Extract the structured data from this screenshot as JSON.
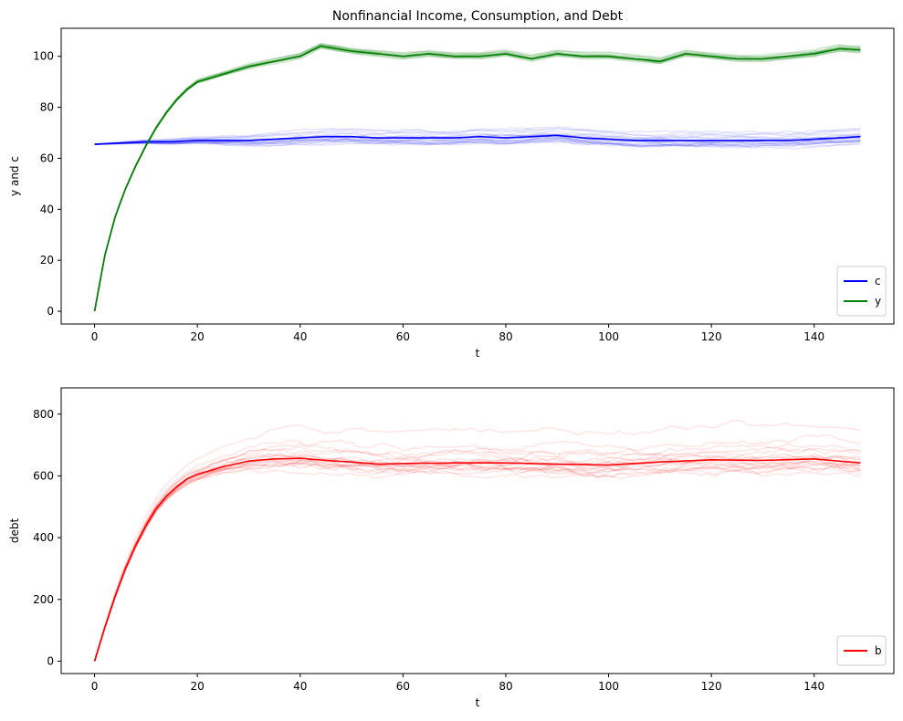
{
  "chart_data": [
    {
      "type": "line",
      "title": "Nonfinancial Income, Consumption, and Debt",
      "xlabel": "t",
      "ylabel": "y and c",
      "xlim": [
        -6.5,
        155.5
      ],
      "ylim": [
        -5,
        111
      ],
      "xticks": [
        0,
        20,
        40,
        60,
        80,
        100,
        120,
        140
      ],
      "yticks": [
        0,
        20,
        40,
        60,
        80,
        100
      ],
      "legend_position": "lower-right",
      "n_faint_paths_per_series": 20,
      "series": [
        {
          "name": "c",
          "color": "#0000ff",
          "x": [
            0,
            5,
            10,
            15,
            20,
            25,
            30,
            35,
            40,
            45,
            50,
            55,
            60,
            65,
            70,
            75,
            80,
            85,
            90,
            95,
            100,
            105,
            110,
            115,
            120,
            125,
            130,
            135,
            140,
            145,
            149
          ],
          "values": [
            65.5,
            66,
            66.5,
            66.5,
            67,
            67,
            67,
            67.5,
            68,
            68.5,
            68.5,
            68,
            68,
            68,
            68,
            68.5,
            68,
            68.5,
            69,
            68,
            67.5,
            67,
            67,
            67,
            67,
            67,
            67,
            67,
            67.5,
            68,
            68.5
          ],
          "faint_spread_end": 6
        },
        {
          "name": "y",
          "color": "#008000",
          "x": [
            0,
            2,
            4,
            6,
            8,
            10,
            12,
            14,
            16,
            18,
            20,
            25,
            30,
            35,
            40,
            44,
            50,
            55,
            60,
            65,
            70,
            75,
            80,
            85,
            90,
            95,
            100,
            105,
            110,
            115,
            120,
            125,
            130,
            135,
            140,
            145,
            149
          ],
          "values": [
            0,
            22,
            37,
            48,
            57,
            65,
            72,
            78,
            83,
            87,
            90,
            93,
            96,
            98,
            100,
            104,
            102,
            101,
            100,
            101,
            100,
            100,
            101,
            99,
            101,
            100,
            100,
            99,
            98,
            101,
            100,
            99,
            99,
            100,
            101,
            103,
            102.5
          ],
          "faint_spread_end": 3
        }
      ]
    },
    {
      "type": "line",
      "title": "",
      "xlabel": "t",
      "ylabel": "debt",
      "xlim": [
        -6.5,
        155.5
      ],
      "ylim": [
        -40,
        885
      ],
      "xticks": [
        0,
        20,
        40,
        60,
        80,
        100,
        120,
        140
      ],
      "yticks": [
        0,
        200,
        400,
        600,
        800
      ],
      "legend_position": "lower-right",
      "n_faint_paths_per_series": 20,
      "series": [
        {
          "name": "b",
          "color": "#ff0000",
          "x": [
            0,
            2,
            4,
            6,
            8,
            10,
            12,
            14,
            16,
            18,
            20,
            25,
            30,
            35,
            40,
            45,
            50,
            55,
            60,
            70,
            80,
            90,
            100,
            110,
            120,
            130,
            140,
            149
          ],
          "values": [
            0,
            110,
            210,
            300,
            375,
            440,
            495,
            535,
            565,
            590,
            605,
            630,
            648,
            655,
            657,
            650,
            645,
            638,
            640,
            642,
            642,
            638,
            635,
            645,
            652,
            650,
            655,
            642
          ],
          "faint_spread_end": 130
        }
      ]
    }
  ]
}
